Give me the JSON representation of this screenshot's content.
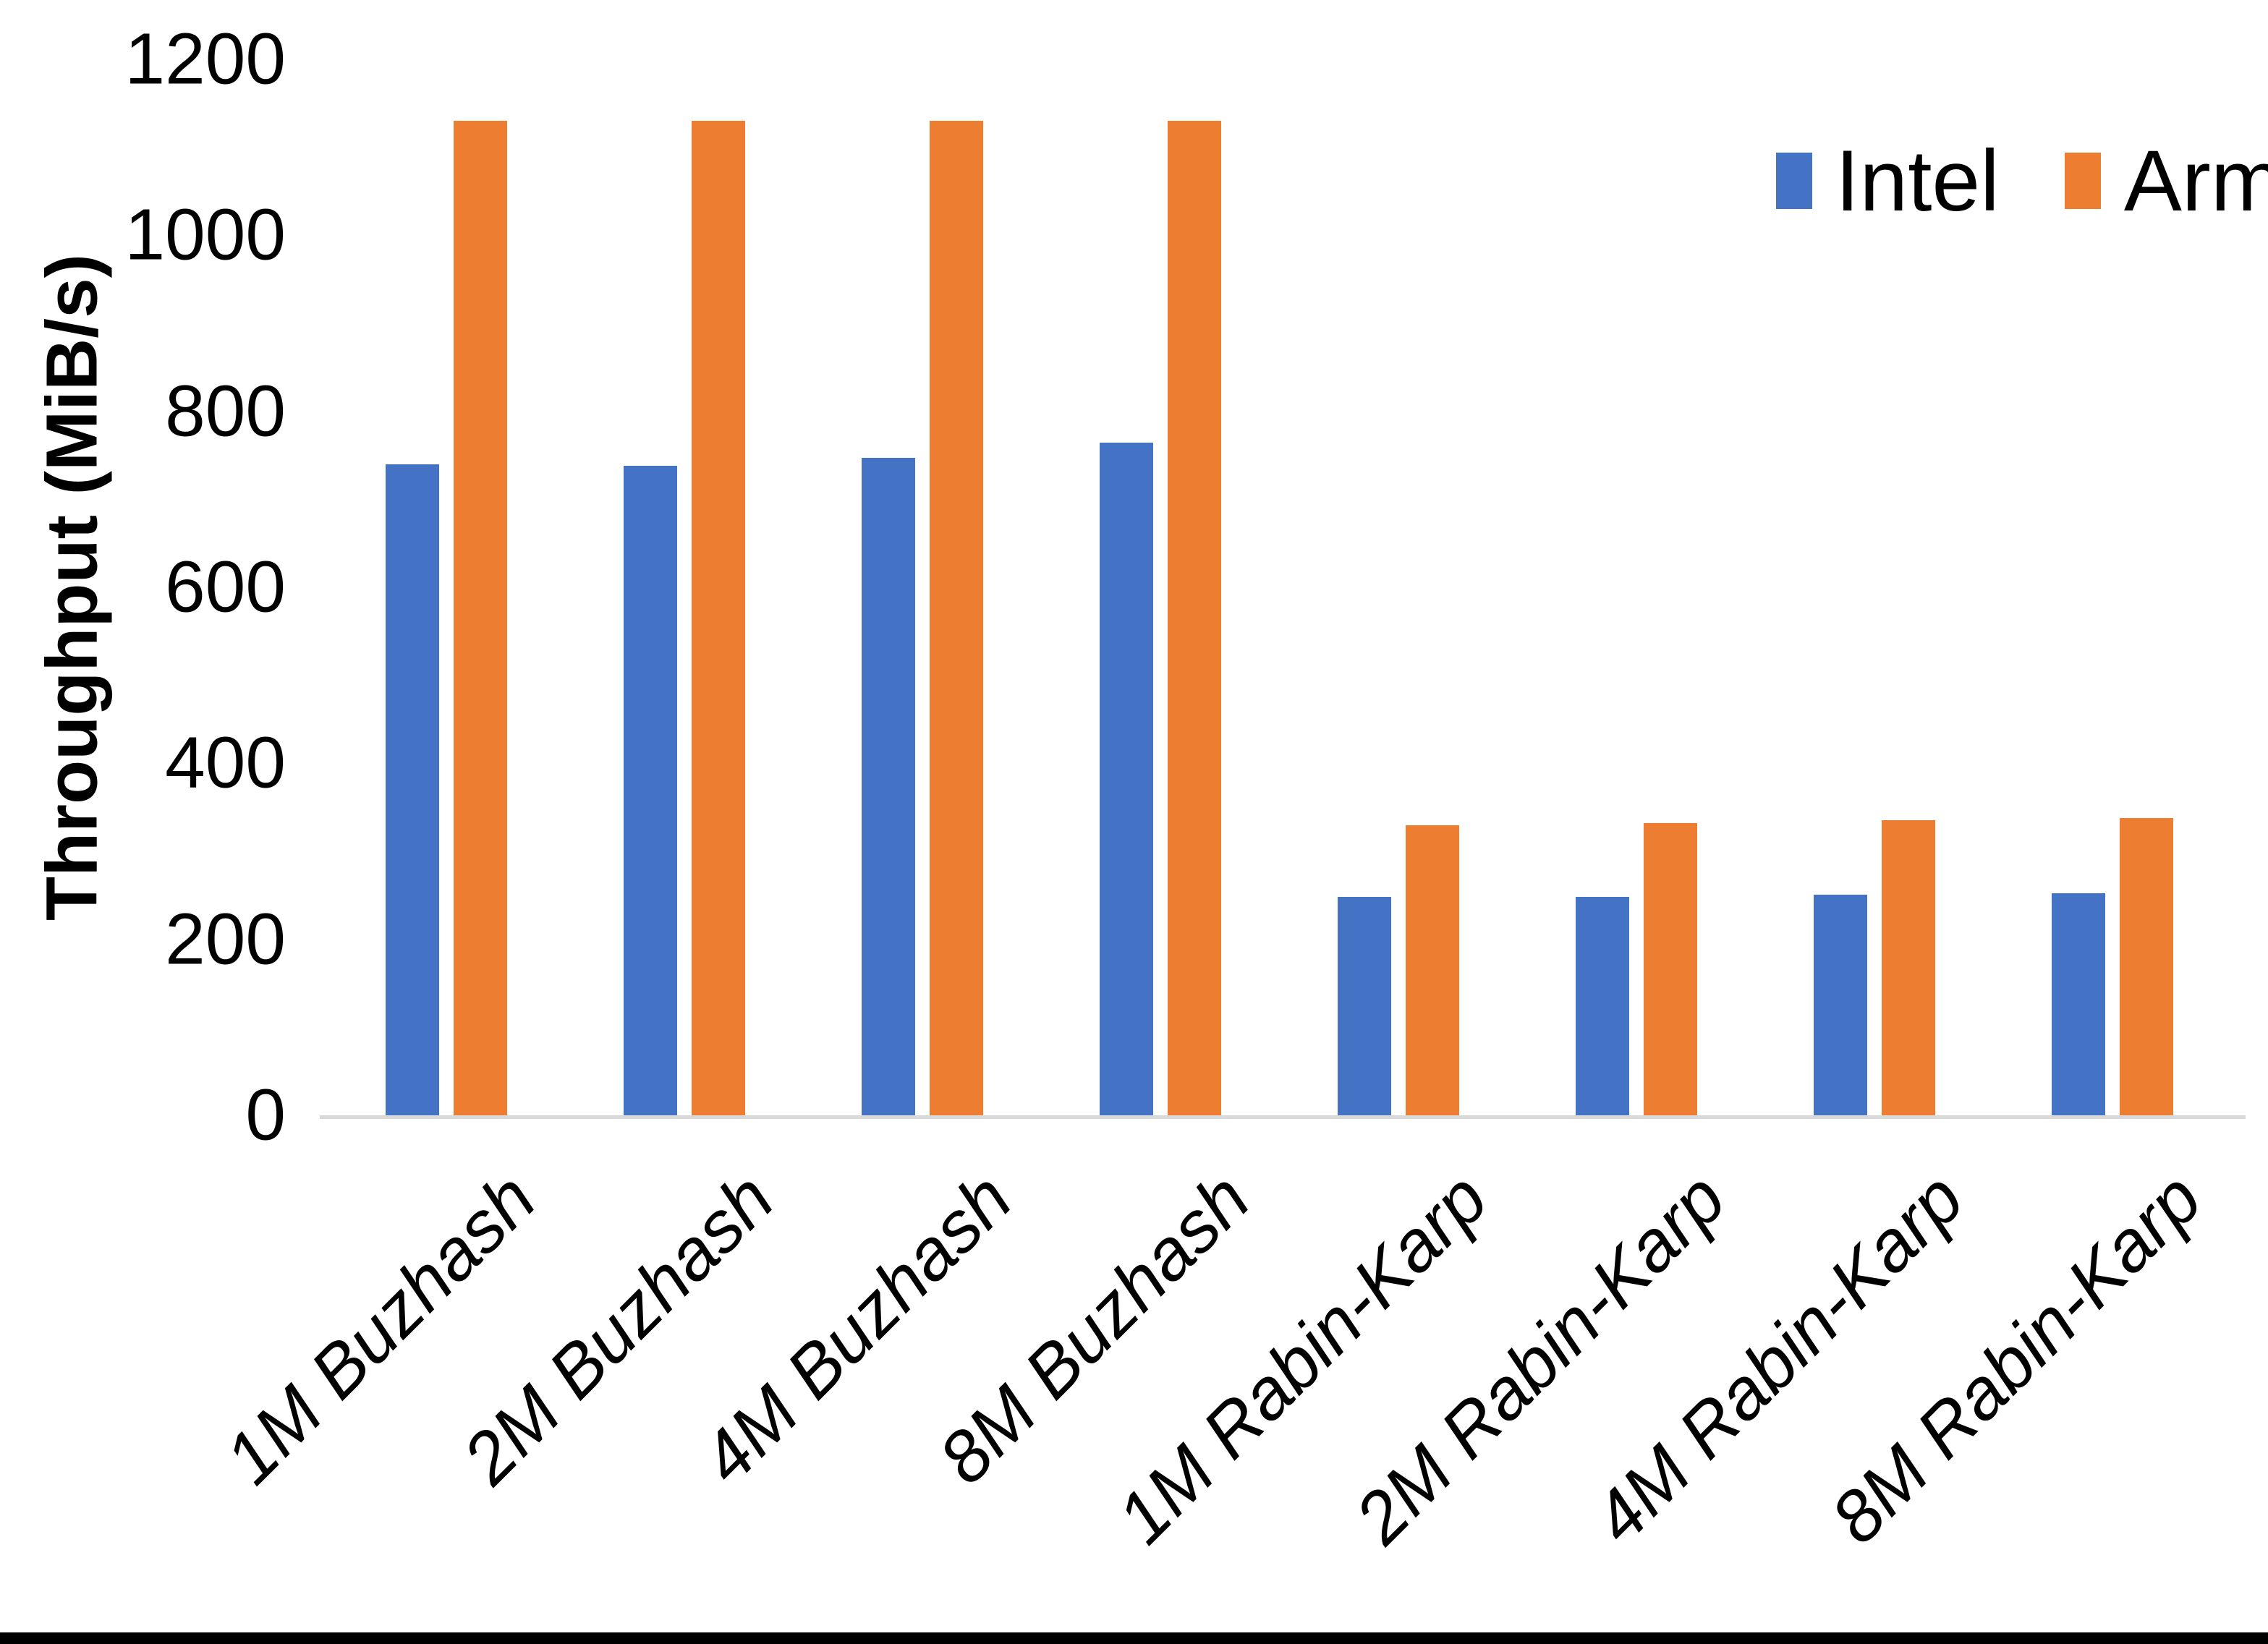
{
  "chart_data": {
    "type": "bar",
    "title": "",
    "ylabel": "Throughput (MiB/s)",
    "xlabel": "",
    "categories": [
      "1M Buzhash",
      "2M Buzhash",
      "4M Buzhash",
      "8M Buzhash",
      "1M Rabin-Karp",
      "2M Rabin-Karp",
      "4M Rabin-Karp",
      "8M Rabin-Karp"
    ],
    "series": [
      {
        "name": "Intel",
        "color": "#4472C4",
        "values": [
          740,
          738,
          747,
          764,
          248,
          248,
          251,
          252
        ]
      },
      {
        "name": "Arm",
        "color": "#ED7D31",
        "values": [
          1130,
          1130,
          1130,
          1130,
          330,
          332,
          335,
          338
        ]
      }
    ],
    "ylim": [
      0,
      1200
    ],
    "ytick_step": 200,
    "ytick_labels": [
      "0",
      "200",
      "400",
      "600",
      "800",
      "1000",
      "1200"
    ],
    "grid": false,
    "legend_position": "top-right",
    "colors": {
      "axis_line": "#D9D9D9",
      "text": "#000000",
      "background": "#FFFFFF",
      "bottom_border": "#000000"
    }
  }
}
